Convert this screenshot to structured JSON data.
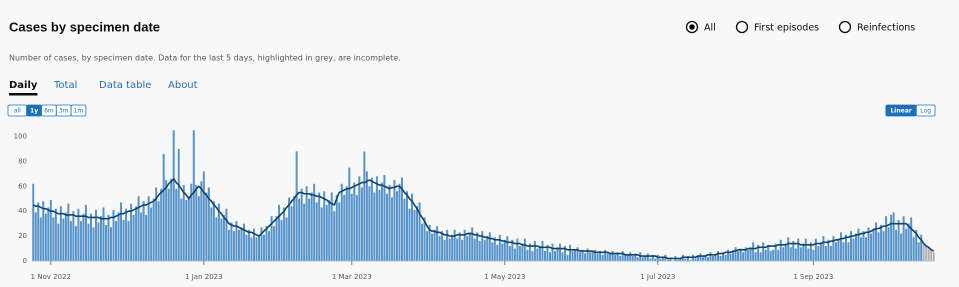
{
  "header": {
    "title": "Cases by specimen date",
    "subtitle": "Number of cases, by specimen date. Data for the last 5 days, highlighted in grey, are incomplete.",
    "options": [
      "All",
      "First episodes",
      "Reinfections"
    ],
    "selected_option": 0
  },
  "tabs": {
    "items": [
      "Daily",
      "Total",
      "Data table",
      "About"
    ],
    "active": 0
  },
  "range_buttons": {
    "items": [
      "all",
      "1y",
      "6m",
      "3m",
      "1m"
    ],
    "active": 1
  },
  "scale_buttons": {
    "items": [
      "Linear",
      "Log"
    ],
    "active": 0
  },
  "chart_data": {
    "type": "bar",
    "log_scale": false,
    "grid": false,
    "ylim": [
      0,
      110
    ],
    "yticks": [
      0,
      20,
      40,
      60,
      80,
      100
    ],
    "incomplete_days": 5,
    "incomplete_color": "#b1b4b6",
    "categories": [
      null,
      null,
      null,
      null,
      null,
      null,
      null,
      "1 Nov 2022",
      null,
      null,
      null,
      null,
      null,
      null,
      null,
      null,
      null,
      null,
      null,
      null,
      null,
      null,
      null,
      null,
      null,
      null,
      null,
      null,
      null,
      null,
      null,
      null,
      null,
      null,
      null,
      null,
      null,
      null,
      null,
      null,
      null,
      null,
      null,
      null,
      null,
      null,
      null,
      null,
      null,
      null,
      null,
      null,
      null,
      null,
      null,
      null,
      null,
      null,
      null,
      null,
      null,
      null,
      null,
      null,
      null,
      null,
      null,
      null,
      "1 Jan 2023",
      null,
      null,
      null,
      null,
      null,
      null,
      null,
      null,
      null,
      null,
      null,
      null,
      null,
      null,
      null,
      null,
      null,
      null,
      null,
      null,
      null,
      null,
      null,
      null,
      null,
      null,
      null,
      null,
      null,
      null,
      null,
      null,
      null,
      null,
      null,
      null,
      null,
      null,
      null,
      null,
      null,
      null,
      null,
      null,
      null,
      null,
      null,
      null,
      null,
      null,
      null,
      null,
      null,
      null,
      null,
      null,
      null,
      null,
      "1 Mar 2023",
      null,
      null,
      null,
      null,
      null,
      null,
      null,
      null,
      null,
      null,
      null,
      null,
      null,
      null,
      null,
      null,
      null,
      null,
      null,
      null,
      null,
      null,
      null,
      null,
      null,
      null,
      null,
      null,
      null,
      null,
      null,
      null,
      null,
      null,
      null,
      null,
      null,
      null,
      null,
      null,
      null,
      null,
      null,
      null,
      null,
      null,
      null,
      null,
      null,
      null,
      null,
      null,
      null,
      null,
      null,
      null,
      null,
      null,
      null,
      null,
      "1 May 2023",
      null,
      null,
      null,
      null,
      null,
      null,
      null,
      null,
      null,
      null,
      null,
      null,
      null,
      null,
      null,
      null,
      null,
      null,
      null,
      null,
      null,
      null,
      null,
      null,
      null,
      null,
      null,
      null,
      null,
      null,
      null,
      null,
      null,
      null,
      null,
      null,
      null,
      null,
      null,
      null,
      null,
      null,
      null,
      null,
      null,
      null,
      null,
      null,
      null,
      null,
      null,
      null,
      null,
      null,
      null,
      null,
      null,
      null,
      null,
      null,
      "1 Jul 2023",
      null,
      null,
      null,
      null,
      null,
      null,
      null,
      null,
      null,
      null,
      null,
      null,
      null,
      null,
      null,
      null,
      null,
      null,
      null,
      null,
      null,
      null,
      null,
      null,
      null,
      null,
      null,
      null,
      null,
      null,
      null,
      null,
      null,
      null,
      null,
      null,
      null,
      null,
      null,
      null,
      null,
      null,
      null,
      null,
      null,
      null,
      null,
      null,
      null,
      null,
      null,
      null,
      null,
      null,
      null,
      null,
      null,
      null,
      null,
      null,
      null,
      "1 Sep 2023",
      null,
      null,
      null,
      null,
      null,
      null,
      null,
      null,
      null,
      null,
      null,
      null,
      null,
      null,
      null,
      null,
      null,
      null,
      null,
      null,
      null,
      null,
      null,
      null,
      null,
      null,
      null,
      null,
      null,
      null,
      null,
      null,
      null,
      null,
      null,
      null,
      null,
      null,
      null,
      null,
      null,
      null,
      null,
      null,
      null,
      null,
      null,
      null
    ],
    "series": [
      {
        "type": "bar",
        "color": "#5694ca",
        "values": [
          62,
          39,
          47,
          35,
          48,
          38,
          43,
          49,
          35,
          42,
          30,
          44,
          34,
          39,
          46,
          32,
          40,
          28,
          42,
          32,
          38,
          45,
          30,
          38,
          27,
          41,
          31,
          36,
          43,
          29,
          37,
          27,
          41,
          32,
          39,
          47,
          33,
          42,
          32,
          46,
          37,
          44,
          52,
          39,
          48,
          37,
          52,
          43,
          50,
          59,
          48,
          58,
          86,
          65,
          58,
          66,
          105,
          58,
          90,
          50,
          61,
          49,
          52,
          62,
          105,
          61,
          52,
          64,
          72,
          55,
          59,
          43,
          48,
          35,
          46,
          34,
          37,
          42,
          25,
          31,
          24,
          32,
          25,
          27,
          30,
          21,
          25,
          19,
          26,
          19,
          21,
          27,
          21,
          28,
          24,
          36,
          28,
          36,
          45,
          33,
          43,
          35,
          51,
          44,
          52,
          88,
          50,
          58,
          46,
          60,
          50,
          55,
          62,
          47,
          55,
          43,
          56,
          45,
          49,
          55,
          40,
          53,
          47,
          62,
          53,
          60,
          75,
          54,
          63,
          53,
          68,
          59,
          88,
          72,
          60,
          67,
          55,
          68,
          57,
          63,
          69,
          54,
          61,
          51,
          65,
          56,
          62,
          67,
          50,
          56,
          42,
          54,
          41,
          44,
          47,
          30,
          35,
          24,
          29,
          22,
          25,
          28,
          20,
          24,
          17,
          25,
          18,
          21,
          25,
          18,
          23,
          17,
          25,
          20,
          23,
          27,
          18,
          23,
          16,
          24,
          17,
          20,
          23,
          15,
          19,
          13,
          21,
          14,
          17,
          20,
          12,
          17,
          10,
          18,
          12,
          14,
          18,
          9,
          14,
          8,
          16,
          10,
          12,
          16,
          8,
          13,
          7,
          14,
          8,
          11,
          14,
          7,
          12,
          5,
          13,
          8,
          9,
          11,
          7,
          9,
          6,
          10,
          7,
          8,
          9,
          6,
          8,
          5,
          9,
          6,
          6,
          8,
          5,
          7,
          4,
          8,
          5,
          5,
          7,
          4,
          6,
          3,
          7,
          3,
          4,
          6,
          2,
          5,
          2,
          5,
          2,
          3,
          5,
          1,
          3,
          0,
          4,
          1,
          2,
          5,
          2,
          4,
          1,
          5,
          2,
          4,
          6,
          3,
          5,
          3,
          7,
          4,
          5,
          8,
          4,
          7,
          5,
          9,
          6,
          8,
          11,
          8,
          10,
          7,
          11,
          9,
          11,
          15,
          7,
          13,
          7,
          15,
          9,
          13,
          8,
          9,
          14,
          9,
          17,
          11,
          14,
          19,
          11,
          16,
          10,
          18,
          11,
          14,
          18,
          10,
          15,
          9,
          18,
          12,
          15,
          20,
          12,
          17,
          12,
          20,
          15,
          18,
          23,
          15,
          21,
          15,
          24,
          18,
          22,
          26,
          19,
          24,
          19,
          27,
          22,
          26,
          31,
          23,
          29,
          24,
          36,
          27,
          37,
          39,
          25,
          33,
          22,
          36,
          26,
          30,
          35,
          19,
          25,
          15,
          21,
          13,
          12,
          11,
          9,
          7
        ]
      },
      {
        "type": "line",
        "color": "#12436d",
        "values": [
          45,
          44,
          44,
          43,
          42,
          42,
          41,
          40,
          40,
          39,
          38,
          38,
          38,
          37,
          37,
          37,
          37,
          36,
          36,
          36,
          36,
          36,
          35,
          35,
          35,
          35,
          35,
          34,
          34,
          34,
          34,
          35,
          35,
          36,
          37,
          38,
          38,
          39,
          40,
          40,
          41,
          42,
          43,
          44,
          45,
          45,
          46,
          47,
          48,
          50,
          53,
          55,
          57,
          59,
          62,
          64,
          66,
          63,
          61,
          58,
          55,
          53,
          50,
          53,
          55,
          58,
          60,
          58,
          55,
          53,
          50,
          48,
          45,
          43,
          40,
          38,
          35,
          33,
          30,
          29,
          28,
          28,
          27,
          26,
          25,
          24,
          23,
          23,
          22,
          21,
          20,
          22,
          24,
          26,
          28,
          30,
          32,
          34,
          36,
          38,
          40,
          43,
          45,
          48,
          50,
          53,
          55,
          55,
          54,
          54,
          54,
          53,
          53,
          52,
          52,
          51,
          50,
          49,
          47,
          46,
          45,
          50,
          55,
          56,
          57,
          58,
          58,
          59,
          60,
          61,
          62,
          63,
          63,
          64,
          65,
          64,
          63,
          62,
          61,
          61,
          60,
          59,
          58,
          59,
          59,
          60,
          60,
          58,
          55,
          53,
          50,
          48,
          45,
          42,
          38,
          35,
          32,
          28,
          25,
          24,
          24,
          23,
          23,
          22,
          21,
          21,
          20,
          20,
          20,
          21,
          21,
          21,
          21,
          22,
          22,
          22,
          21,
          21,
          20,
          20,
          19,
          19,
          18,
          18,
          17,
          17,
          17,
          16,
          16,
          15,
          15,
          15,
          14,
          14,
          14,
          13,
          13,
          12,
          12,
          12,
          12,
          12,
          11,
          11,
          11,
          11,
          11,
          10,
          10,
          10,
          10,
          10,
          10,
          9,
          9,
          9,
          9,
          9,
          8,
          8,
          8,
          8,
          8,
          8,
          7,
          7,
          7,
          7,
          7,
          7,
          6,
          6,
          6,
          6,
          6,
          6,
          5,
          5,
          5,
          5,
          5,
          5,
          4,
          4,
          4,
          4,
          4,
          4,
          4,
          3,
          3,
          3,
          3,
          2,
          2,
          2,
          2,
          2,
          2,
          3,
          3,
          3,
          3,
          3,
          3,
          4,
          4,
          4,
          4,
          5,
          5,
          5,
          5,
          6,
          6,
          6,
          7,
          7,
          7,
          8,
          8,
          9,
          9,
          9,
          9,
          10,
          10,
          10,
          10,
          11,
          11,
          11,
          11,
          12,
          12,
          12,
          12,
          13,
          13,
          13,
          13,
          14,
          14,
          14,
          14,
          14,
          13,
          13,
          13,
          13,
          13,
          13,
          14,
          14,
          14,
          15,
          15,
          15,
          16,
          16,
          17,
          17,
          18,
          18,
          19,
          19,
          20,
          20,
          21,
          21,
          22,
          22,
          23,
          23,
          24,
          25,
          26,
          26,
          27,
          28,
          28,
          29,
          30,
          30,
          30,
          30,
          30,
          30,
          30,
          28,
          26,
          24,
          22,
          19,
          17,
          14,
          12,
          11,
          9,
          8
        ]
      }
    ]
  }
}
